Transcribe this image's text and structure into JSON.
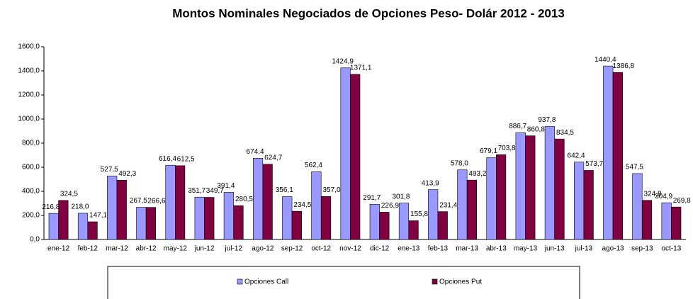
{
  "chart_data": {
    "type": "bar",
    "title": "Montos Nominales Negociados de Opciones Peso- Dolár  2012 - 2013",
    "categories": [
      "ene-12",
      "feb-12",
      "mar-12",
      "abr-12",
      "may-12",
      "jun-12",
      "jul-12",
      "ago-12",
      "sep-12",
      "oct-12",
      "nov-12",
      "dic-12",
      "ene-13",
      "feb-13",
      "mar-13",
      "abr-13",
      "may-13",
      "jun-13",
      "jul-13",
      "ago-13",
      "sep-13",
      "oct-13"
    ],
    "series": [
      {
        "name": "Opciones Call",
        "color": "#9999ff",
        "values": [
          216.8,
          218.0,
          527.5,
          267.5,
          616.4,
          351.7,
          391.4,
          674.4,
          356.1,
          562.4,
          1424.9,
          291.7,
          301.8,
          413.9,
          578.0,
          679.1,
          886.7,
          937.8,
          642.4,
          1440.4,
          547.5,
          304.9
        ],
        "value_labels": [
          "216,8",
          "218,0",
          "527,5",
          "267,5",
          "616,4",
          "351,7",
          "391,4",
          "674,4",
          "356,1",
          "562,4",
          "1424,9",
          "291,7",
          "301,8",
          "413,9",
          "578,0",
          "679,1",
          "886,7",
          "937,8",
          "642,4",
          "1440,4",
          "547,5",
          "304,9"
        ]
      },
      {
        "name": "Opciones Put",
        "color": "#800040",
        "values": [
          324.5,
          147.1,
          492.3,
          266.6,
          612.5,
          349.7,
          280.5,
          624.7,
          234.5,
          357.0,
          1371.1,
          226.9,
          155.8,
          231.4,
          493.2,
          703.8,
          860.8,
          834.5,
          573.7,
          1386.8,
          324.8,
          269.8
        ],
        "value_labels": [
          "324,5",
          "147,1",
          "492,3",
          "266,6",
          "612,5",
          "349,7",
          "280,5",
          "624,7",
          "234,5",
          "357,0",
          "1371,1",
          "226,9",
          "155,8",
          "231,4",
          "493,2",
          "703,8",
          "860,8",
          "834,5",
          "573,7",
          "1386,8",
          "324,8",
          "269,8"
        ]
      }
    ],
    "ylim": [
      0,
      1600
    ],
    "yticks": [
      {
        "value": 0,
        "label": "0,0"
      },
      {
        "value": 200,
        "label": "200,0"
      },
      {
        "value": 400,
        "label": "400,0"
      },
      {
        "value": 600,
        "label": "600,0"
      },
      {
        "value": 800,
        "label": "800,0"
      },
      {
        "value": 1000,
        "label": "1000,0"
      },
      {
        "value": 1200,
        "label": "1200,0"
      },
      {
        "value": 1400,
        "label": "1400,0"
      },
      {
        "value": 1600,
        "label": "1600,0"
      }
    ],
    "legend": "bottom"
  }
}
